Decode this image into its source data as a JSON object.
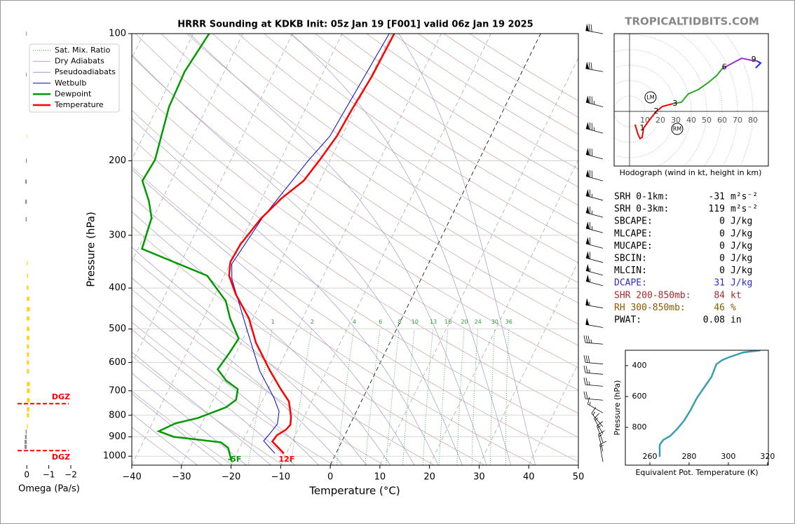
{
  "header": {
    "watermark": "TROPICALTIDBITS.COM"
  },
  "chart_data": [
    {
      "type": "skewt",
      "title": "HRRR Sounding at KDKB Init: 05z Jan 19 [F001] valid 06z Jan 19 2025",
      "xlabel": "Temperature (°C)",
      "ylabel": "Pressure (hPa)",
      "xlim": [
        -40,
        50
      ],
      "ylim": [
        1050,
        100
      ],
      "log_y": true,
      "xticks": [
        {
          "value": -40,
          "label": "−40"
        },
        {
          "value": -30,
          "label": "−30"
        },
        {
          "value": -20,
          "label": "−20"
        },
        {
          "value": -10,
          "label": "−10"
        },
        0,
        10,
        20,
        30,
        40,
        50
      ],
      "yticks": [
        100,
        200,
        300,
        400,
        500,
        600,
        700,
        800,
        900,
        1000
      ],
      "grid": true,
      "legend": "upper left",
      "reference_lines": [
        {
          "name": "Sat. Mix. Ratio",
          "color": "#2e9a3a",
          "dash": "1,2"
        },
        {
          "name": "Dry Adiabats",
          "color": "#c8a0a0",
          "dash": ""
        },
        {
          "name": "Pseudoadiabats",
          "color": "#9a9ac8",
          "dash": ""
        }
      ],
      "mixing_ratios": [
        1,
        2,
        4,
        6,
        8,
        10,
        13,
        16,
        20,
        24,
        30,
        36
      ],
      "series": [
        {
          "name": "Wetbulb",
          "color": "#0000cc",
          "width": 1,
          "pressure": [
            985,
            920,
            886,
            839,
            783,
            725,
            628,
            500,
            381,
            351,
            274,
            199,
            175,
            100
          ],
          "values": [
            -12.3,
            -15.8,
            -15.3,
            -14.7,
            -15.6,
            -18.1,
            -23.5,
            -30.2,
            -38.1,
            -39.6,
            -38.0,
            -34.3,
            -32.4,
            -30.5
          ]
        },
        {
          "name": "Dewpoint",
          "color": "#009900",
          "width": 2.5,
          "pressure": [
            1031,
            955,
            927,
            900,
            873,
            836,
            812,
            766,
            735,
            694,
            662,
            623,
            572,
            527,
            472,
            429,
            374,
            323,
            273,
            249,
            223,
            199,
            149,
            123,
            100
          ],
          "values": [
            -20.2,
            -22.3,
            -24.3,
            -34.3,
            -37.9,
            -35.3,
            -31.3,
            -26.7,
            -25.4,
            -26.1,
            -29.3,
            -32.1,
            -31.4,
            -30.9,
            -34.6,
            -37.2,
            -43.4,
            -59.2,
            -60.3,
            -62.5,
            -65.8,
            -65.3,
            -67.7,
            -68.0,
            -66.8
          ]
        },
        {
          "name": "Temperature",
          "color": "#ff0000",
          "width": 2.5,
          "pressure": [
            985,
            923,
            892,
            865,
            842,
            805,
            742,
            693,
            628,
            539,
            472,
            413,
            374,
            347,
            316,
            274,
            246,
            223,
            199,
            175,
            152,
            126,
            100
          ],
          "values": [
            -10.5,
            -14.0,
            -13.7,
            -12.4,
            -12.0,
            -12.7,
            -14.6,
            -17.5,
            -21.4,
            -27.0,
            -30.8,
            -35.9,
            -39.0,
            -40.1,
            -39.8,
            -38.2,
            -36.1,
            -33.3,
            -32.1,
            -31.0,
            -30.6,
            -29.8,
            -29.5
          ]
        }
      ],
      "surface_labels": [
        {
          "series": 1,
          "label": "-5F"
        },
        {
          "series": 2,
          "label": "12F"
        }
      ],
      "winds": {
        "pressure": [
          100,
          123,
          149,
          172,
          198,
          223,
          248,
          272,
          296,
          322,
          348,
          373,
          395,
          446,
          496,
          543,
          605,
          640,
          683,
          737,
          790,
          852,
          885,
          927,
          974,
          1031
        ],
        "direction": [
          280,
          280,
          285,
          285,
          285,
          285,
          285,
          285,
          285,
          285,
          285,
          285,
          285,
          280,
          280,
          275,
          275,
          275,
          275,
          275,
          300,
          320,
          330,
          340,
          345,
          350
        ],
        "speed": [
          70,
          70,
          75,
          75,
          70,
          70,
          65,
          65,
          65,
          60,
          60,
          55,
          55,
          55,
          50,
          35,
          30,
          25,
          25,
          20,
          15,
          15,
          15,
          15,
          15,
          15
        ]
      }
    },
    {
      "type": "barh",
      "xlabel": "Omega (Pa/s)",
      "xlim": [
        0.42,
        -2
      ],
      "xticks": [
        0,
        {
          "value": -1,
          "label": "−1"
        },
        {
          "value": -2,
          "label": "−2"
        }
      ],
      "color_rising": "#ffd21f",
      "color_sinking": "#8c8c8c",
      "pressure": [
        100,
        125,
        175,
        200,
        224,
        250,
        275,
        349,
        374,
        399,
        424,
        449,
        472,
        500,
        525,
        550,
        575,
        600,
        630,
        675,
        700,
        737,
        775,
        800,
        850,
        875,
        900,
        925,
        950
      ],
      "values": [
        0.03,
        0.03,
        -0.02,
        0.04,
        0.07,
        0.07,
        0.05,
        -0.04,
        -0.05,
        -0.08,
        -0.12,
        -0.14,
        -0.12,
        -0.12,
        -0.12,
        -0.1,
        -0.1,
        -0.1,
        -0.1,
        -0.14,
        -0.14,
        -0.14,
        -0.12,
        -0.1,
        -0.04,
        0.05,
        0.08,
        0.1,
        0.1
      ],
      "dgz": {
        "label": "DGZ",
        "color": "#ff0000",
        "pressure": [
          751,
          970
        ]
      }
    },
    {
      "type": "hodograph",
      "caption": "Hodograph (wind in kt, height in km)",
      "xlim": [
        -10,
        90
      ],
      "ylim": [
        -35.5,
        50.5
      ],
      "rings": [
        10,
        20,
        30,
        40,
        50,
        60,
        70,
        80
      ],
      "segments": [
        {
          "color": "#ff0000",
          "u": [
            3.6,
            5.5,
            6.8,
            8.2,
            9.1,
            12.7,
            17.3,
            21.4,
            28.2
          ],
          "v": [
            -8.6,
            -15,
            -17.7,
            -16.8,
            -10.9,
            -5.9,
            0,
            3.2,
            5
          ]
        },
        {
          "color": "#22aa22",
          "u": [
            28.2,
            33.6,
            38.2,
            44.5,
            50.9,
            56.4,
            60
          ],
          "v": [
            5,
            5.9,
            11.4,
            14.1,
            18.6,
            23.2,
            27.7
          ]
        },
        {
          "color": "#9933cc",
          "u": [
            60,
            66.8,
            72.7,
            79.1,
            82.7
          ],
          "v": [
            27.7,
            31.4,
            34.5,
            33.2,
            32.7
          ]
        },
        {
          "color": "#2222ff",
          "u": [
            82.7,
            85,
            81.8
          ],
          "v": [
            32.7,
            31.4,
            28.2
          ]
        }
      ],
      "height_labels": [
        {
          "label": "1",
          "u": 8.2,
          "v": -10.9
        },
        {
          "label": "2",
          "u": 17.3,
          "v": 0
        },
        {
          "label": "3",
          "u": 29.5,
          "v": 5
        },
        {
          "label": "6",
          "u": 61.4,
          "v": 28.6
        },
        {
          "label": "9",
          "u": 80.5,
          "v": 33.6
        }
      ],
      "storm_motion": [
        {
          "label": "LM",
          "u": 13.6,
          "v": 9.1
        },
        {
          "label": "RM",
          "u": 30.9,
          "v": -11.4
        }
      ]
    },
    {
      "type": "line",
      "xlabel": "Equivalent Pot. Temperature (K)",
      "ylabel": "Pressure (hPa)",
      "xlim": [
        247.5,
        320.4
      ],
      "ylim": [
        1045,
        300
      ],
      "xticks": [
        260,
        280,
        300,
        320
      ],
      "yticks": [
        400,
        600,
        800
      ],
      "color": "#3a9db0",
      "x": [
        265,
        265,
        266.8,
        270.4,
        274,
        277.5,
        280.8,
        284,
        287.9,
        291.4,
        293.9,
        296.8,
        300.4,
        307.5,
        316.4
      ],
      "values": [
        991,
        914,
        882,
        855,
        809,
        755,
        686,
        609,
        536,
        473,
        391,
        364,
        345,
        314,
        300
      ]
    }
  ],
  "indices": {
    "rows": [
      {
        "label": "SRH 0-1km:",
        "value": -31,
        "unit": "m²s⁻²",
        "color": "#000000"
      },
      {
        "label": "SRH 0-3km:",
        "value": 119,
        "unit": "m²s⁻²",
        "color": "#000000"
      },
      {
        "label": "SBCAPE:",
        "value": 0,
        "unit": "J/kg",
        "color": "#000000"
      },
      {
        "label": "MLCAPE:",
        "value": 0,
        "unit": "J/kg",
        "color": "#000000"
      },
      {
        "label": "MUCAPE:",
        "value": 0,
        "unit": "J/kg",
        "color": "#000000"
      },
      {
        "label": "SBCIN:",
        "value": 0,
        "unit": "J/kg",
        "color": "#000000"
      },
      {
        "label": "MLCIN:",
        "value": 0,
        "unit": "J/kg",
        "color": "#000000"
      },
      {
        "label": "DCAPE:",
        "value": 31,
        "unit": "J/kg",
        "color": "#2a2ad0"
      },
      {
        "label": "SHR 200-850mb:",
        "value": 84,
        "unit": "kt",
        "color": "#a52a2a"
      },
      {
        "label": "RH 300-850mb:",
        "value": 46,
        "unit": "%",
        "color": "#8b5a00"
      },
      {
        "label": "PWAT:",
        "value": 0.08,
        "unit": "in",
        "color": "#000000"
      }
    ]
  }
}
